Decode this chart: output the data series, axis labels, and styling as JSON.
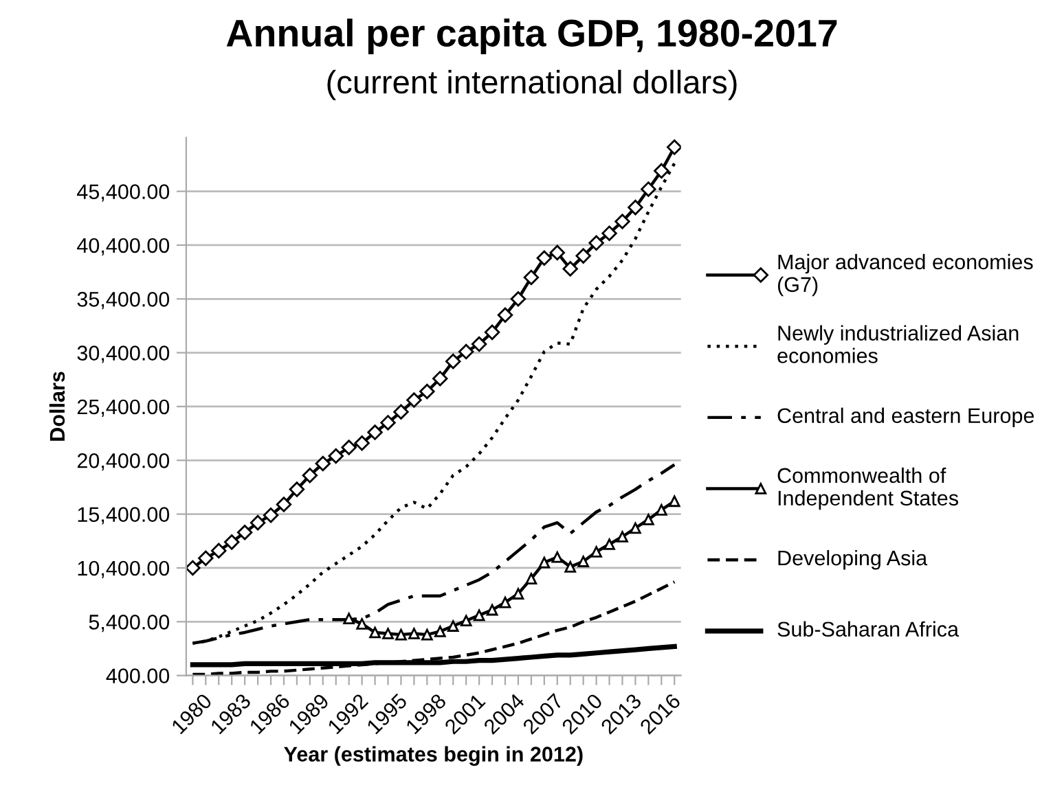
{
  "chart_data": {
    "type": "line",
    "title": "Annual per capita GDP, 1980-2017",
    "subtitle": "(current international dollars)",
    "xlabel": "Year (estimates begin in 2012)",
    "ylabel": "Dollars",
    "categories": [
      "1980",
      null,
      null,
      "1983",
      null,
      null,
      "1986",
      null,
      null,
      "1989",
      null,
      null,
      "1992",
      null,
      null,
      "1995",
      null,
      null,
      "1998",
      null,
      null,
      "2001",
      null,
      null,
      "2004",
      null,
      null,
      "2007",
      null,
      null,
      "2010",
      null,
      null,
      "2013",
      null,
      null,
      "2016",
      null
    ],
    "ylim": [
      400,
      50400
    ],
    "yticks": [
      {
        "value": 400,
        "label": "400.00"
      },
      {
        "value": 5400,
        "label": "5,400.00"
      },
      {
        "value": 10400,
        "label": "10,400.00"
      },
      {
        "value": 15400,
        "label": "15,400.00"
      },
      {
        "value": 20400,
        "label": "20,400.00"
      },
      {
        "value": 25400,
        "label": "25,400.00"
      },
      {
        "value": 30400,
        "label": "30,400.00"
      },
      {
        "value": 35400,
        "label": "35,400.00"
      },
      {
        "value": 40400,
        "label": "40,400.00"
      },
      {
        "value": 45400,
        "label": "45,400.00"
      }
    ],
    "grid": "y",
    "legend": "right",
    "series": [
      {
        "name": "Major advanced economies (G7)",
        "color": "#000000",
        "marker": "diamond",
        "line_style": "solid",
        "values": [
          10400,
          11300,
          12000,
          12800,
          13700,
          14600,
          15300,
          16300,
          17700,
          19000,
          20100,
          20800,
          21600,
          22000,
          23000,
          23900,
          24900,
          26000,
          26800,
          28000,
          29600,
          30500,
          31200,
          32300,
          33900,
          35400,
          37400,
          39200,
          39700,
          38200,
          39400,
          40600,
          41500,
          42600,
          43900,
          45600,
          47300,
          49500
        ]
      },
      {
        "name": "Newly industrialized Asian economies",
        "color": "#000000",
        "marker": "none",
        "line_style": "dotted",
        "values": [
          3400,
          3600,
          4000,
          4500,
          5000,
          5500,
          6200,
          7000,
          7900,
          8900,
          10000,
          10800,
          11600,
          12400,
          13500,
          14800,
          16000,
          16500,
          15900,
          17300,
          19000,
          19800,
          21000,
          22500,
          24300,
          26000,
          28200,
          30500,
          31300,
          31200,
          34500,
          36300,
          37500,
          39000,
          41000,
          43500,
          45800,
          48000
        ]
      },
      {
        "name": "Central and eastern Europe",
        "color": "#000000",
        "marker": "none",
        "line_style": "dashdot",
        "values": [
          3400,
          3600,
          3900,
          4200,
          4400,
          4700,
          5000,
          5200,
          5400,
          5600,
          5600,
          5600,
          5600,
          5700,
          6200,
          7000,
          7400,
          7800,
          7800,
          7800,
          8300,
          8800,
          9300,
          10000,
          11000,
          12000,
          13000,
          14200,
          14600,
          13600,
          14600,
          15600,
          16200,
          17000,
          17700,
          18500,
          19200,
          20000
        ]
      },
      {
        "name": "Commonwealth of Independent States",
        "color": "#000000",
        "marker": "triangle",
        "line_style": "solid",
        "values": [
          null,
          null,
          null,
          null,
          null,
          null,
          null,
          null,
          null,
          null,
          null,
          null,
          5700,
          5200,
          4400,
          4300,
          4200,
          4300,
          4200,
          4500,
          5000,
          5500,
          6000,
          6500,
          7200,
          8000,
          9400,
          10900,
          11400,
          10500,
          11000,
          11900,
          12600,
          13300,
          14100,
          14900,
          15800,
          16600
        ]
      },
      {
        "name": "Developing Asia",
        "color": "#000000",
        "marker": "none",
        "line_style": "dashed",
        "values": [
          500,
          500,
          600,
          600,
          700,
          700,
          800,
          800,
          900,
          1000,
          1100,
          1200,
          1300,
          1400,
          1500,
          1600,
          1700,
          1800,
          1900,
          2000,
          2100,
          2300,
          2500,
          2800,
          3100,
          3400,
          3800,
          4200,
          4600,
          4900,
          5400,
          5800,
          6300,
          6800,
          7300,
          7900,
          8500,
          9100
        ]
      },
      {
        "name": "Sub-Saharan Africa",
        "color": "#000000",
        "marker": "none",
        "line_style": "solid",
        "values": [
          1400,
          1400,
          1400,
          1400,
          1500,
          1500,
          1500,
          1500,
          1500,
          1500,
          1500,
          1500,
          1500,
          1500,
          1600,
          1600,
          1600,
          1600,
          1600,
          1600,
          1700,
          1700,
          1800,
          1800,
          1900,
          2000,
          2100,
          2200,
          2300,
          2300,
          2400,
          2500,
          2600,
          2700,
          2800,
          2900,
          3000,
          3100
        ]
      }
    ]
  }
}
